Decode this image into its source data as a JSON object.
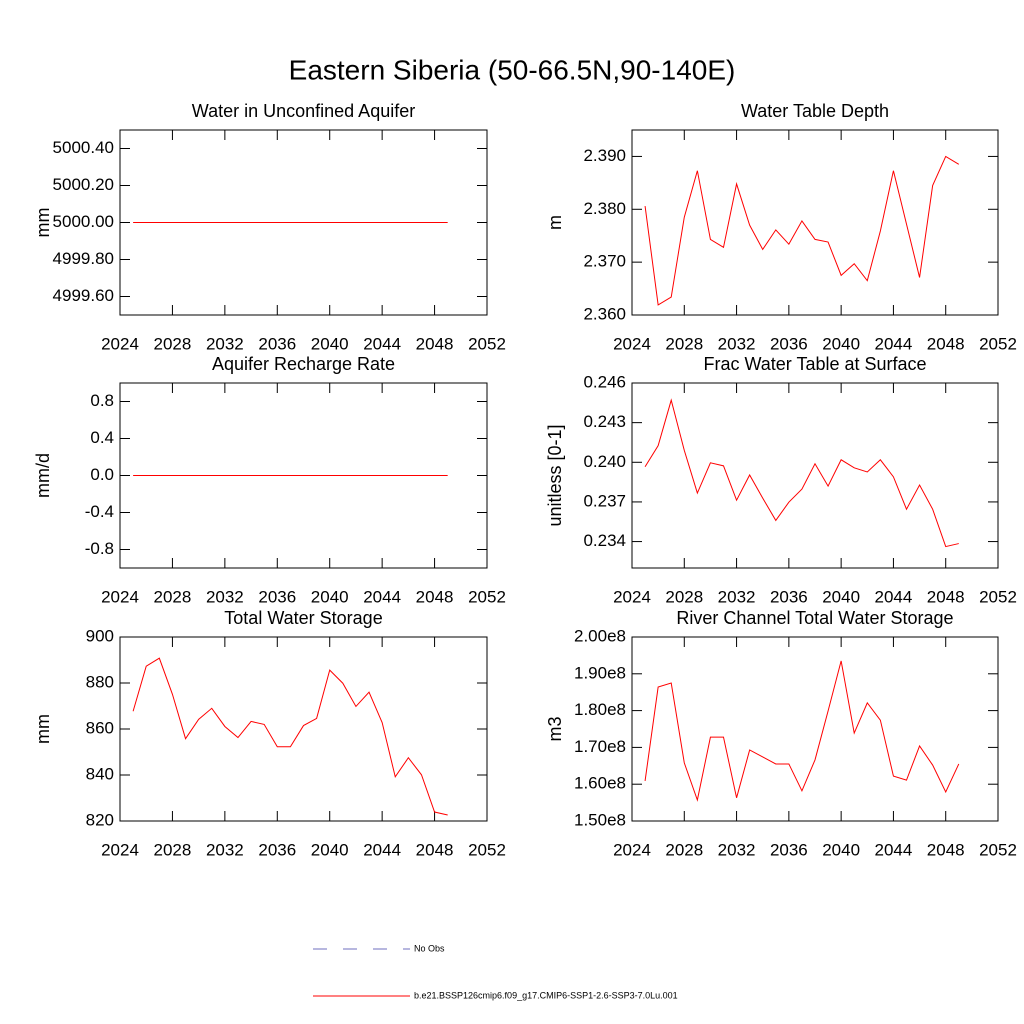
{
  "title": "Eastern Siberia (50-66.5N,90-140E)",
  "legend": [
    {
      "label": "No Obs",
      "color": "#6f6fbf",
      "dashed": true
    },
    {
      "label": "b.e21.BSSP126cmip6.f09_g17.CMIP6-SSP1-2.6-SSP3-7.0Lu.001",
      "color": "#ff0000",
      "dashed": false
    }
  ],
  "chart_data": [
    {
      "type": "line",
      "title": "Water in Unconfined Aquifer",
      "y_label": "mm",
      "x": [
        2025,
        2026,
        2027,
        2028,
        2029,
        2030,
        2031,
        2032,
        2033,
        2034,
        2035,
        2036,
        2037,
        2038,
        2039,
        2040,
        2041,
        2042,
        2043,
        2044,
        2045,
        2046,
        2047,
        2048,
        2049
      ],
      "values": [
        5000,
        5000,
        5000,
        5000,
        5000,
        5000,
        5000,
        5000,
        5000,
        5000,
        5000,
        5000,
        5000,
        5000,
        5000,
        5000,
        5000,
        5000,
        5000,
        5000,
        5000,
        5000,
        5000,
        5000,
        5000
      ],
      "color": "#ff0000",
      "xlim": [
        2024,
        2052
      ],
      "xticks": [
        2024,
        2028,
        2032,
        2036,
        2040,
        2044,
        2048,
        2052
      ],
      "ylim": [
        4999.5,
        5000.5
      ],
      "yticks": [
        {
          "value": 4999.6,
          "label": "4999.60"
        },
        {
          "value": 4999.8,
          "label": "4999.80"
        },
        {
          "value": 5000,
          "label": "5000.00"
        },
        {
          "value": 5000.2,
          "label": "5000.20"
        },
        {
          "value": 5000.4,
          "label": "5000.40"
        }
      ]
    },
    {
      "type": "line",
      "title": "Water Table Depth",
      "y_label": "m",
      "x": [
        2025,
        2026,
        2027,
        2028,
        2029,
        2030,
        2031,
        2032,
        2033,
        2034,
        2035,
        2036,
        2037,
        2038,
        2039,
        2040,
        2041,
        2042,
        2043,
        2044,
        2045,
        2046,
        2047,
        2048,
        2049
      ],
      "values": [
        2.3806,
        2.3619,
        2.3634,
        2.3785,
        2.3873,
        2.3743,
        2.3728,
        2.3848,
        2.377,
        2.3724,
        2.3761,
        2.3734,
        2.3778,
        2.3743,
        2.3738,
        2.3675,
        2.3697,
        2.3665,
        2.3759,
        2.3873,
        2.3772,
        2.3671,
        2.3845,
        2.39,
        2.3885
      ],
      "color": "#ff0000",
      "xlim": [
        2024,
        2052
      ],
      "xticks": [
        2024,
        2028,
        2032,
        2036,
        2040,
        2044,
        2048,
        2052
      ],
      "ylim": [
        2.36,
        2.395
      ],
      "yticks": [
        {
          "value": 2.36,
          "label": "2.360"
        },
        {
          "value": 2.37,
          "label": "2.370"
        },
        {
          "value": 2.38,
          "label": "2.380"
        },
        {
          "value": 2.39,
          "label": "2.390"
        }
      ]
    },
    {
      "type": "line",
      "title": "Aquifer Recharge Rate",
      "y_label": "mm/d",
      "x": [
        2025,
        2026,
        2027,
        2028,
        2029,
        2030,
        2031,
        2032,
        2033,
        2034,
        2035,
        2036,
        2037,
        2038,
        2039,
        2040,
        2041,
        2042,
        2043,
        2044,
        2045,
        2046,
        2047,
        2048,
        2049
      ],
      "values": [
        0,
        0,
        0,
        0,
        0,
        0,
        0,
        0,
        0,
        0,
        0,
        0,
        0,
        0,
        0,
        0,
        0,
        0,
        0,
        0,
        0,
        0,
        0,
        0,
        0
      ],
      "color": "#ff0000",
      "xlim": [
        2024,
        2052
      ],
      "xticks": [
        2024,
        2028,
        2032,
        2036,
        2040,
        2044,
        2048,
        2052
      ],
      "ylim": [
        -1,
        1
      ],
      "yticks": [
        -0.8,
        -0.4,
        {
          "value": 0,
          "label": "0.0"
        },
        0.4,
        0.8
      ]
    },
    {
      "type": "line",
      "title": "Frac Water Table at Surface",
      "y_label": "unitless [0-1]",
      "x": [
        2025,
        2026,
        2027,
        2028,
        2029,
        2030,
        2031,
        2032,
        2033,
        2034,
        2035,
        2036,
        2037,
        2038,
        2039,
        2040,
        2041,
        2042,
        2043,
        2044,
        2045,
        2046,
        2047,
        2048,
        2049
      ],
      "values": [
        0.23966,
        0.24126,
        0.2447,
        0.2409,
        0.23767,
        0.23996,
        0.23973,
        0.23713,
        0.23904,
        0.23729,
        0.2356,
        0.23698,
        0.23797,
        0.23989,
        0.2382,
        0.24019,
        0.23958,
        0.23927,
        0.24019,
        0.2389,
        0.23645,
        0.23828,
        0.23645,
        0.23362,
        0.23385
      ],
      "color": "#ff0000",
      "xlim": [
        2024,
        2052
      ],
      "xticks": [
        2024,
        2028,
        2032,
        2036,
        2040,
        2044,
        2048,
        2052
      ],
      "ylim": [
        0.232,
        0.246
      ],
      "yticks": [
        0.234,
        0.237,
        {
          "value": 0.24,
          "label": "0.240"
        },
        0.243,
        0.246
      ]
    },
    {
      "type": "line",
      "title": "Total Water Storage",
      "y_label": "mm",
      "x": [
        2025,
        2026,
        2027,
        2028,
        2029,
        2030,
        2031,
        2032,
        2033,
        2034,
        2035,
        2036,
        2037,
        2038,
        2039,
        2040,
        2041,
        2042,
        2043,
        2044,
        2045,
        2046,
        2047,
        2048,
        2049
      ],
      "values": [
        867.7,
        887.3,
        890.8,
        875.1,
        855.8,
        864.2,
        869,
        861.1,
        856.3,
        863.3,
        862,
        852.3,
        852.3,
        861.5,
        864.6,
        885.6,
        879.9,
        869.8,
        876,
        862.8,
        839.2,
        847.5,
        840.1,
        823.9,
        822.6
      ],
      "color": "#ff0000",
      "xlim": [
        2024,
        2052
      ],
      "xticks": [
        2024,
        2028,
        2032,
        2036,
        2040,
        2044,
        2048,
        2052
      ],
      "ylim": [
        820,
        900
      ],
      "yticks": [
        820,
        840,
        860,
        880,
        900
      ]
    },
    {
      "type": "line",
      "title": "River Channel Total Water Storage",
      "y_label": "m3",
      "x": [
        2025,
        2026,
        2027,
        2028,
        2029,
        2030,
        2031,
        2032,
        2033,
        2034,
        2035,
        2036,
        2037,
        2038,
        2039,
        2040,
        2041,
        2042,
        2043,
        2044,
        2045,
        2046,
        2047,
        2048,
        2049
      ],
      "values": [
        160900000,
        186400000,
        187500000,
        165800000,
        155700000,
        172800000,
        172800000,
        156300000,
        169300000,
        167400000,
        165500000,
        165500000,
        158200000,
        166600000,
        179900000,
        193500000,
        173900000,
        182100000,
        177400000,
        162200000,
        161100000,
        170400000,
        165200000,
        157900000,
        165500000
      ],
      "color": "#ff0000",
      "xlim": [
        2024,
        2052
      ],
      "xticks": [
        2024,
        2028,
        2032,
        2036,
        2040,
        2044,
        2048,
        2052
      ],
      "ylim": [
        150000000,
        200000000
      ],
      "yticks": [
        {
          "value": 150000000,
          "label": "1.50e8"
        },
        {
          "value": 160000000,
          "label": "1.60e8"
        },
        {
          "value": 170000000,
          "label": "1.70e8"
        },
        {
          "value": 180000000,
          "label": "1.80e8"
        },
        {
          "value": 190000000,
          "label": "1.90e8"
        },
        {
          "value": 200000000,
          "label": "2.00e8"
        }
      ]
    }
  ]
}
